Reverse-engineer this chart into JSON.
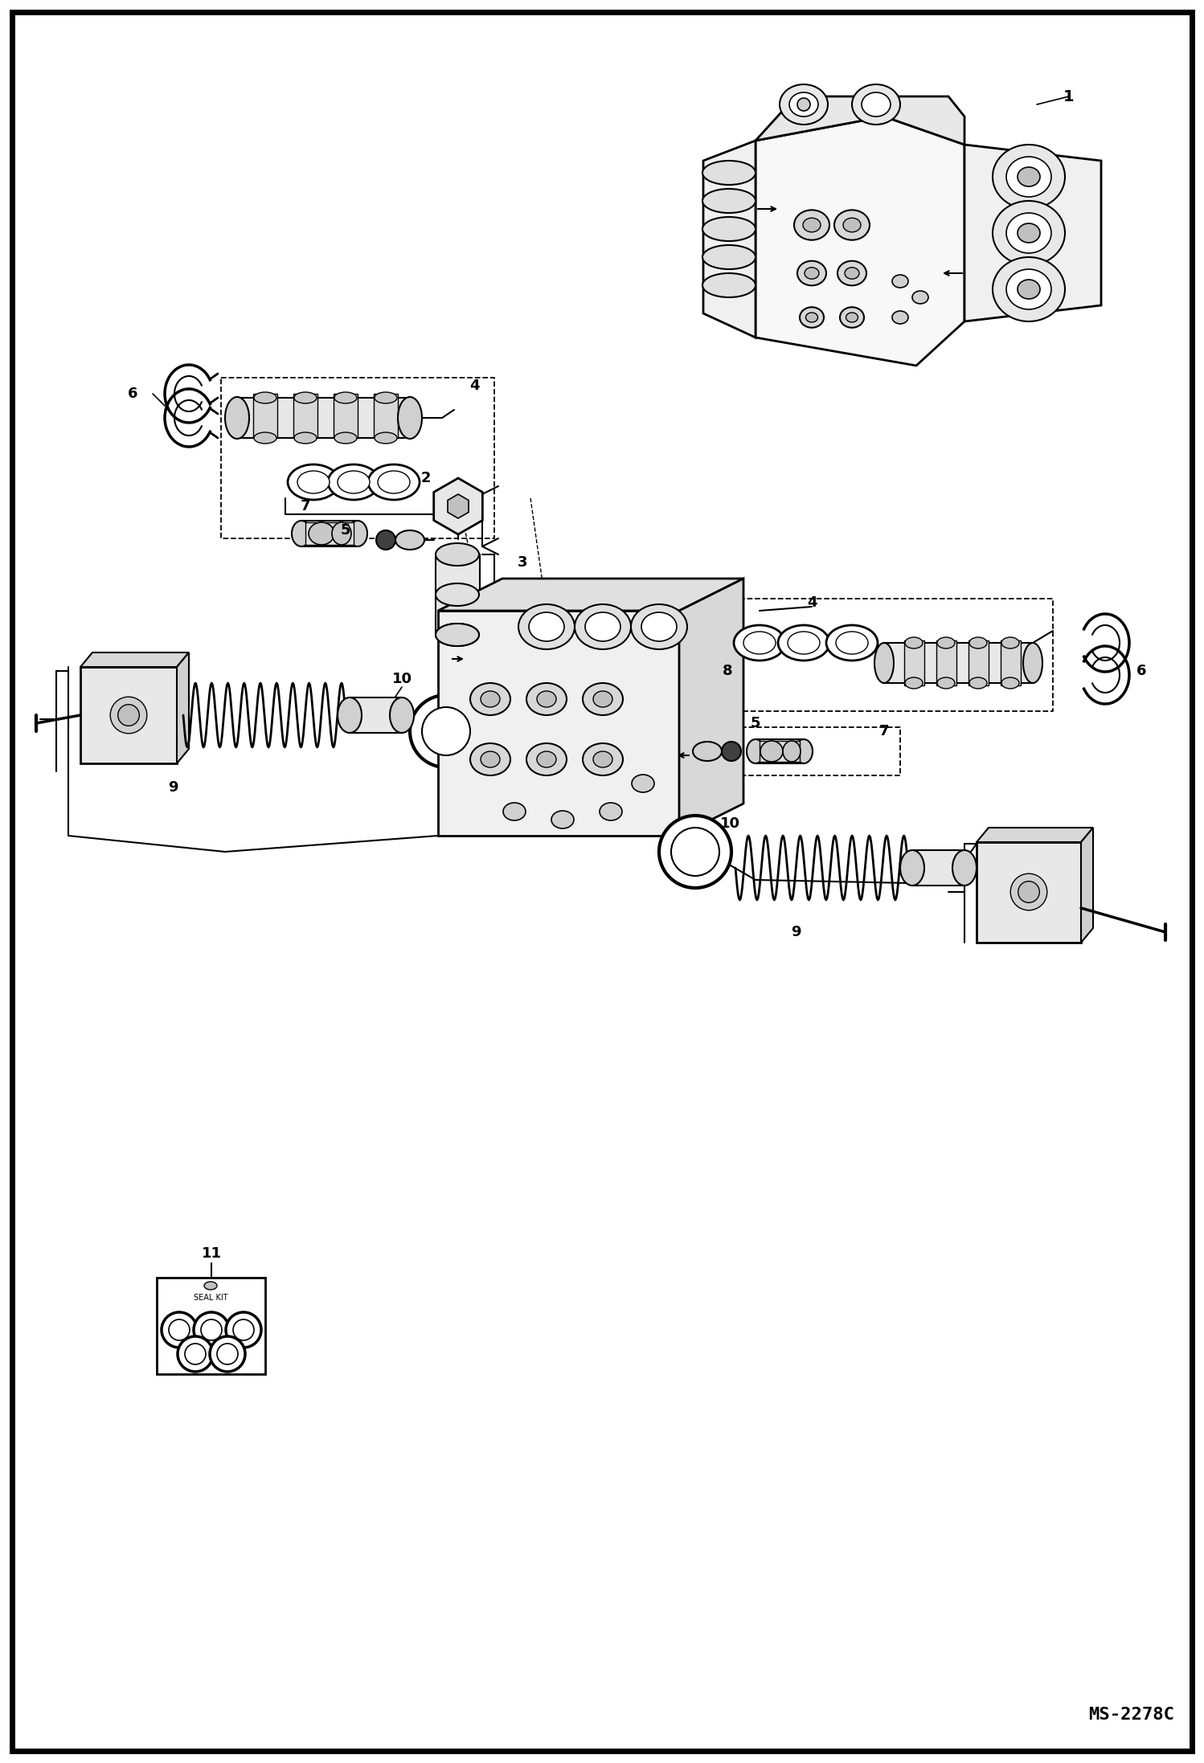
{
  "bg_color": "#ffffff",
  "line_color": "#000000",
  "fig_width": 14.98,
  "fig_height": 21.94,
  "dpi": 100,
  "code": "MS-2278C",
  "border_lw": 5,
  "inner_border_lw": 2
}
